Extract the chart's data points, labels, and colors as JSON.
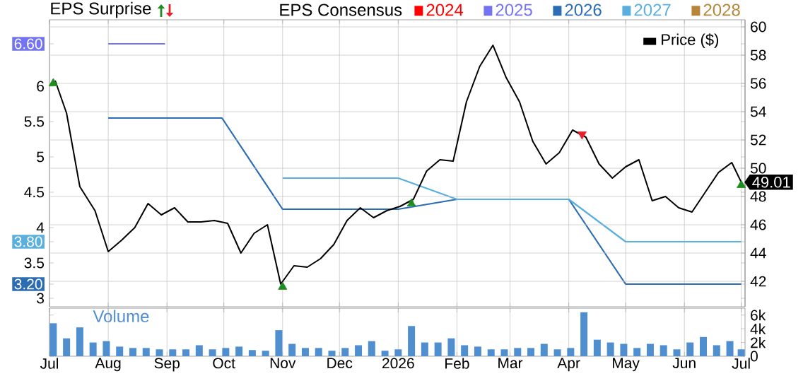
{
  "chart_data": [
    {
      "type": "line",
      "legend_title": "EPS Consensus",
      "legend": "top",
      "grid": true,
      "tick_labels": "y",
      "annotations": [
        "EPS Surprise"
      ],
      "xlim": [
        "2025-07-01",
        "2026-07-03"
      ],
      "xticks": [
        {
          "value": "2025-07-01",
          "label": null
        },
        {
          "value": "2025-08-01",
          "label": null
        },
        {
          "value": "2025-09-01",
          "label": null
        },
        {
          "value": "2025-10-01",
          "label": null
        },
        {
          "value": "2025-11-01",
          "label": null
        },
        {
          "value": "2025-12-01",
          "label": null
        },
        {
          "value": "2026-01-01",
          "label": null
        },
        {
          "value": "2026-02-01",
          "label": null
        },
        {
          "value": "2026-03-01",
          "label": null
        },
        {
          "value": "2026-04-01",
          "label": null
        },
        {
          "value": "2026-05-01",
          "label": null
        },
        {
          "value": "2026-06-01",
          "label": null
        },
        {
          "value": "2026-07-01",
          "label": null
        }
      ],
      "ylim": [
        2.88,
        6.94
      ],
      "yticks": [
        3,
        {
          "value": 3.2,
          "label": "3.20"
        },
        3.5,
        {
          "value": 3.8,
          "label": "3.80"
        },
        4,
        4.5,
        5,
        5.5,
        6,
        {
          "value": 6.6,
          "label": "6.60"
        }
      ],
      "y2lim": [
        40.2,
        60.5
      ],
      "y2ticks": [
        42,
        44,
        46,
        48,
        50,
        52,
        54,
        56,
        58,
        60
      ],
      "series": [
        {
          "name": "2024",
          "color": "#ff0000"
        },
        {
          "name": "2025",
          "color": "#7474f2",
          "x": [
            "2025-08-01",
            "2025-08-31"
          ],
          "values": [
            6.6,
            6.6
          ]
        },
        {
          "name": "2026",
          "color": "#2c6cb4",
          "x": [
            "2025-08-01",
            "2025-09-30",
            "2025-11-01",
            "2026-01-01",
            "2026-02-01",
            "2026-04-01",
            "2026-05-01",
            "2026-07-01"
          ],
          "values": [
            5.55,
            5.55,
            4.26,
            4.26,
            4.4,
            4.4,
            3.2,
            3.2
          ]
        },
        {
          "name": "2027",
          "color": "#5aafde",
          "x": [
            "2025-11-01",
            "2026-01-01",
            "2026-02-01",
            "2026-04-01",
            "2026-05-01",
            "2026-07-01"
          ],
          "values": [
            4.7,
            4.7,
            4.4,
            4.4,
            3.8,
            3.8
          ]
        },
        {
          "name": "2028",
          "color": "#b5853a"
        },
        {
          "name": "Price ($)",
          "color": "#000000",
          "axis": "y2",
          "x": [
            "2025-07-04",
            "2025-07-10",
            "2025-07-17",
            "2025-07-25",
            "2025-08-01",
            "2025-08-08",
            "2025-08-15",
            "2025-08-22",
            "2025-08-29",
            "2025-09-05",
            "2025-09-12",
            "2025-09-19",
            "2025-09-26",
            "2025-10-03",
            "2025-10-10",
            "2025-10-17",
            "2025-10-24",
            "2025-10-31",
            "2025-11-07",
            "2025-11-14",
            "2025-11-21",
            "2025-11-28",
            "2025-12-05",
            "2025-12-12",
            "2025-12-19",
            "2025-12-26",
            "2026-01-02",
            "2026-01-09",
            "2026-01-16",
            "2026-01-23",
            "2026-01-30",
            "2026-02-06",
            "2026-02-13",
            "2026-02-20",
            "2026-02-27",
            "2026-03-06",
            "2026-03-13",
            "2026-03-20",
            "2026-03-27",
            "2026-04-03",
            "2026-04-10",
            "2026-04-17",
            "2026-04-24",
            "2026-05-01",
            "2026-05-08",
            "2026-05-15",
            "2026-05-22",
            "2026-05-29",
            "2026-06-05",
            "2026-06-12",
            "2026-06-19",
            "2026-06-26",
            "2026-07-01"
          ],
          "values": [
            56.2,
            53.9,
            48.7,
            47.0,
            44.1,
            44.9,
            45.8,
            47.5,
            46.7,
            47.2,
            46.2,
            46.2,
            46.3,
            46.1,
            44.0,
            45.4,
            46.0,
            41.8,
            43.1,
            43.0,
            43.6,
            44.6,
            46.3,
            47.2,
            46.5,
            47.0,
            47.3,
            47.8,
            49.8,
            50.6,
            50.5,
            54.7,
            57.2,
            58.7,
            56.4,
            54.7,
            51.9,
            50.3,
            51.1,
            52.7,
            52.2,
            50.3,
            49.3,
            50.1,
            50.6,
            47.7,
            48.0,
            47.2,
            46.9,
            48.3,
            49.7,
            50.4,
            49.01
          ],
          "value_labels": [
            null,
            null,
            null,
            null,
            null,
            null,
            null,
            null,
            null,
            null,
            null,
            null,
            null,
            null,
            null,
            null,
            null,
            null,
            null,
            null,
            null,
            null,
            null,
            null,
            null,
            null,
            null,
            null,
            null,
            null,
            null,
            null,
            null,
            null,
            null,
            null,
            null,
            null,
            null,
            null,
            null,
            null,
            null,
            null,
            null,
            null,
            null,
            null,
            null,
            null,
            null,
            null,
            "49.01"
          ]
        },
        {
          "type": "scatter",
          "marker": "triangle",
          "color": "#1e8c1e",
          "axis": "y2",
          "x": [
            "2025-07-03",
            "2025-11-01",
            "2026-07-01"
          ],
          "values": [
            56.0,
            41.6,
            48.8
          ]
        },
        {
          "type": "scatter",
          "marker": "triangle",
          "color": "#1e8c1e",
          "axis": "y2",
          "line_style": "dashed",
          "x": [
            "2026-01-08"
          ],
          "values": [
            47.5
          ]
        },
        {
          "type": "scatter",
          "marker": "triangle",
          "color": "#e8202a",
          "axis": "y2",
          "x": [
            "2026-04-08"
          ],
          "values": [
            52.4
          ]
        }
      ]
    },
    {
      "type": "bar",
      "title": "Volume",
      "color": "#4f8fd0",
      "grid": "x",
      "xlim": [
        "2025-07-01",
        "2026-07-03"
      ],
      "xticks": [
        {
          "value": "2025-07-01",
          "label": "Jul"
        },
        {
          "value": "2025-08-01",
          "label": "Aug"
        },
        {
          "value": "2025-09-01",
          "label": "Sep"
        },
        {
          "value": "2025-10-01",
          "label": "Oct"
        },
        {
          "value": "2025-11-01",
          "label": "Nov"
        },
        {
          "value": "2025-12-01",
          "label": "Dec"
        },
        {
          "value": "2026-01-01",
          "label": "2026"
        },
        {
          "value": "2026-02-01",
          "label": "Feb"
        },
        {
          "value": "2026-03-01",
          "label": "Mar"
        },
        {
          "value": "2026-04-01",
          "label": "Apr"
        },
        {
          "value": "2026-05-01",
          "label": "May"
        },
        {
          "value": "2026-06-01",
          "label": "Jun"
        },
        {
          "value": "2026-07-01",
          "label": "Jul"
        }
      ],
      "ylim": [
        0,
        7
      ],
      "yticks": [
        0,
        {
          "value": 2,
          "label": "2k"
        },
        {
          "value": 4,
          "label": "4k"
        },
        {
          "value": 6,
          "label": "6k"
        }
      ],
      "x": [
        "2025-07-03",
        "2025-07-10",
        "2025-07-17",
        "2025-07-24",
        "2025-07-31",
        "2025-08-07",
        "2025-08-14",
        "2025-08-21",
        "2025-08-28",
        "2025-09-04",
        "2025-09-11",
        "2025-09-18",
        "2025-09-25",
        "2025-10-02",
        "2025-10-09",
        "2025-10-16",
        "2025-10-23",
        "2025-10-30",
        "2025-11-06",
        "2025-11-13",
        "2025-11-20",
        "2025-11-27",
        "2025-12-04",
        "2025-12-11",
        "2025-12-18",
        "2025-12-25",
        "2026-01-01",
        "2026-01-08",
        "2026-01-15",
        "2026-01-22",
        "2026-01-29",
        "2026-02-05",
        "2026-02-12",
        "2026-02-19",
        "2026-02-26",
        "2026-03-05",
        "2026-03-12",
        "2026-03-19",
        "2026-03-26",
        "2026-04-02",
        "2026-04-09",
        "2026-04-16",
        "2026-04-23",
        "2026-04-30",
        "2026-05-07",
        "2026-05-14",
        "2026-05-21",
        "2026-05-28",
        "2026-06-04",
        "2026-06-11",
        "2026-06-18",
        "2026-06-25",
        "2026-07-01"
      ],
      "values": [
        4.8,
        2.6,
        4.2,
        2.0,
        2.2,
        1.4,
        1.2,
        1.2,
        1.0,
        1.0,
        1.0,
        1.6,
        1.0,
        1.2,
        1.4,
        0.9,
        0.8,
        3.8,
        1.8,
        1.2,
        1.2,
        0.8,
        1.2,
        1.6,
        2.2,
        0.8,
        1.0,
        4.4,
        2.0,
        2.0,
        2.6,
        1.6,
        1.4,
        1.0,
        1.0,
        1.2,
        1.2,
        1.8,
        1.0,
        1.2,
        6.4,
        2.4,
        2.0,
        1.8,
        1.2,
        1.8,
        1.6,
        1.0,
        2.0,
        2.8,
        1.6,
        2.2,
        1.0
      ]
    }
  ]
}
